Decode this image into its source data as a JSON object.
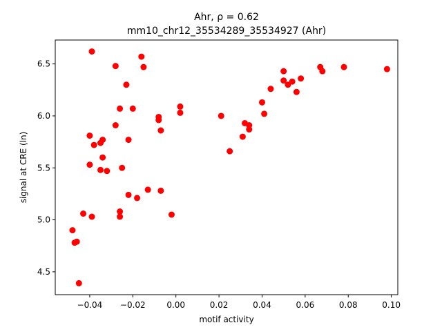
{
  "chart_data": {
    "type": "scatter",
    "title_line1": "Ahr, ρ = 0.62",
    "title_line2": "mm10_chr12_35534289_35534927 (Ahr)",
    "xlabel": "motif activity",
    "ylabel": "signal at CRE (ln)",
    "xlim": [
      -0.056,
      0.103
    ],
    "ylim": [
      4.28,
      6.73
    ],
    "xticks": [
      -0.04,
      -0.02,
      0.0,
      0.02,
      0.04,
      0.06,
      0.08,
      0.1
    ],
    "xtick_labels": [
      "−0.04",
      "−0.02",
      "0.00",
      "0.02",
      "0.04",
      "0.06",
      "0.08",
      "0.10"
    ],
    "yticks": [
      4.5,
      5.0,
      5.5,
      6.0,
      6.5
    ],
    "ytick_labels": [
      "4.5",
      "5.0",
      "5.5",
      "6.0",
      "6.5"
    ],
    "grid": false,
    "marker_color": "#ff0000",
    "points": [
      {
        "x": -0.039,
        "y": 6.62
      },
      {
        "x": -0.028,
        "y": 6.48
      },
      {
        "x": -0.016,
        "y": 6.57
      },
      {
        "x": -0.015,
        "y": 6.47
      },
      {
        "x": -0.023,
        "y": 6.3
      },
      {
        "x": -0.026,
        "y": 6.07
      },
      {
        "x": -0.02,
        "y": 6.07
      },
      {
        "x": -0.008,
        "y": 5.99
      },
      {
        "x": -0.008,
        "y": 5.96
      },
      {
        "x": 0.002,
        "y": 6.09
      },
      {
        "x": 0.002,
        "y": 6.03
      },
      {
        "x": -0.028,
        "y": 5.91
      },
      {
        "x": -0.007,
        "y": 5.86
      },
      {
        "x": -0.04,
        "y": 5.81
      },
      {
        "x": -0.034,
        "y": 5.77
      },
      {
        "x": -0.035,
        "y": 5.74
      },
      {
        "x": -0.038,
        "y": 5.72
      },
      {
        "x": -0.022,
        "y": 5.77
      },
      {
        "x": -0.034,
        "y": 5.6
      },
      {
        "x": -0.04,
        "y": 5.53
      },
      {
        "x": -0.035,
        "y": 5.48
      },
      {
        "x": -0.032,
        "y": 5.47
      },
      {
        "x": -0.025,
        "y": 5.5
      },
      {
        "x": -0.013,
        "y": 5.29
      },
      {
        "x": -0.007,
        "y": 5.28
      },
      {
        "x": -0.022,
        "y": 5.24
      },
      {
        "x": -0.018,
        "y": 5.21
      },
      {
        "x": -0.026,
        "y": 5.08
      },
      {
        "x": -0.026,
        "y": 5.03
      },
      {
        "x": -0.043,
        "y": 5.06
      },
      {
        "x": -0.039,
        "y": 5.03
      },
      {
        "x": -0.002,
        "y": 5.05
      },
      {
        "x": -0.048,
        "y": 4.9
      },
      {
        "x": -0.047,
        "y": 4.78
      },
      {
        "x": -0.046,
        "y": 4.79
      },
      {
        "x": -0.045,
        "y": 4.39
      },
      {
        "x": 0.021,
        "y": 6.0
      },
      {
        "x": 0.025,
        "y": 5.66
      },
      {
        "x": 0.031,
        "y": 5.8
      },
      {
        "x": 0.032,
        "y": 5.93
      },
      {
        "x": 0.034,
        "y": 5.91
      },
      {
        "x": 0.034,
        "y": 5.87
      },
      {
        "x": 0.04,
        "y": 6.13
      },
      {
        "x": 0.041,
        "y": 6.02
      },
      {
        "x": 0.044,
        "y": 6.26
      },
      {
        "x": 0.05,
        "y": 6.43
      },
      {
        "x": 0.05,
        "y": 6.34
      },
      {
        "x": 0.052,
        "y": 6.3
      },
      {
        "x": 0.054,
        "y": 6.33
      },
      {
        "x": 0.056,
        "y": 6.23
      },
      {
        "x": 0.058,
        "y": 6.36
      },
      {
        "x": 0.067,
        "y": 6.47
      },
      {
        "x": 0.068,
        "y": 6.43
      },
      {
        "x": 0.078,
        "y": 6.47
      },
      {
        "x": 0.098,
        "y": 6.45
      }
    ]
  }
}
